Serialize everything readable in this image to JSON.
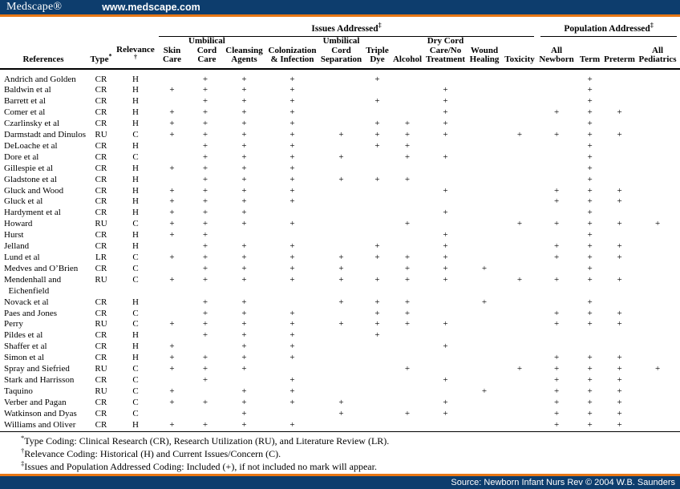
{
  "colors": {
    "navy": "#0d3d6d",
    "orange": "#e87715"
  },
  "header": {
    "logo": "Medscape®",
    "url": "www.medscape.com"
  },
  "footer": {
    "source": "Source: Newborn Infant Nurs Rev © 2004 W.B. Saunders"
  },
  "table": {
    "spanners": [
      {
        "label": "Issues Addressed",
        "sup": "‡"
      },
      {
        "label": "Population Addressed",
        "sup": "‡"
      }
    ],
    "columns": [
      {
        "key": "references",
        "label": "References",
        "sup": ""
      },
      {
        "key": "type",
        "label": "Type",
        "sup": "*"
      },
      {
        "key": "relevance",
        "label": "Relevance",
        "sup": "†"
      },
      {
        "key": "skin",
        "label": "Skin\nCare",
        "sup": ""
      },
      {
        "key": "cordcare",
        "label": "Umbilical\nCord\nCare",
        "sup": ""
      },
      {
        "key": "cleansing",
        "label": "Cleansing\nAgents",
        "sup": ""
      },
      {
        "key": "colonization",
        "label": "Colonization\n& Infection",
        "sup": ""
      },
      {
        "key": "separation",
        "label": "Umbilical\nCord\nSeparation",
        "sup": ""
      },
      {
        "key": "tripledye",
        "label": "Triple\nDye",
        "sup": ""
      },
      {
        "key": "alcohol",
        "label": "Alcohol",
        "sup": ""
      },
      {
        "key": "drycord",
        "label": "Dry Cord\nCare/No\nTreatment",
        "sup": ""
      },
      {
        "key": "wound",
        "label": "Wound\nHealing",
        "sup": ""
      },
      {
        "key": "toxicity",
        "label": "Toxicity",
        "sup": ""
      },
      {
        "key": "allnewborn",
        "label": "All\nNewborn",
        "sup": ""
      },
      {
        "key": "term",
        "label": "Term",
        "sup": ""
      },
      {
        "key": "preterm",
        "label": "Preterm",
        "sup": ""
      },
      {
        "key": "allpediatrics",
        "label": "All\nPediatrics",
        "sup": ""
      }
    ],
    "rows": [
      {
        "reference": "Andrich and Golden",
        "type": "CR",
        "relevance": "H",
        "marks": [
          "",
          "+",
          "+",
          "+",
          "",
          "+",
          "",
          "",
          "",
          "",
          "",
          "+",
          "",
          ""
        ]
      },
      {
        "reference": "Baldwin et al",
        "type": "CR",
        "relevance": "H",
        "marks": [
          "+",
          "+",
          "+",
          "+",
          "",
          "",
          "",
          "+",
          "",
          "",
          "",
          "+",
          "",
          ""
        ]
      },
      {
        "reference": "Barrett et al",
        "type": "CR",
        "relevance": "H",
        "marks": [
          "",
          "+",
          "+",
          "+",
          "",
          "+",
          "",
          "+",
          "",
          "",
          "",
          "+",
          "",
          ""
        ]
      },
      {
        "reference": "Comer et al",
        "type": "CR",
        "relevance": "H",
        "marks": [
          "+",
          "+",
          "+",
          "+",
          "",
          "",
          "",
          "+",
          "",
          "",
          "+",
          "+",
          "+",
          ""
        ]
      },
      {
        "reference": "Czarlinsky et al",
        "type": "CR",
        "relevance": "H",
        "marks": [
          "+",
          "+",
          "+",
          "+",
          "",
          "+",
          "+",
          "+",
          "",
          "",
          "",
          "+",
          "",
          ""
        ]
      },
      {
        "reference": "Darmstadt and Dinulos",
        "type": "RU",
        "relevance": "C",
        "marks": [
          "+",
          "+",
          "+",
          "+",
          "+",
          "+",
          "+",
          "+",
          "",
          "+",
          "+",
          "+",
          "+",
          ""
        ]
      },
      {
        "reference": "DeLoache et al",
        "type": "CR",
        "relevance": "H",
        "marks": [
          "",
          "+",
          "+",
          "+",
          "",
          "+",
          "+",
          "",
          "",
          "",
          "",
          "+",
          "",
          ""
        ]
      },
      {
        "reference": "Dore et al",
        "type": "CR",
        "relevance": "C",
        "marks": [
          "",
          "+",
          "+",
          "+",
          "+",
          "",
          "+",
          "+",
          "",
          "",
          "",
          "+",
          "",
          ""
        ]
      },
      {
        "reference": "Gillespie et al",
        "type": "CR",
        "relevance": "H",
        "marks": [
          "+",
          "+",
          "+",
          "+",
          "",
          "",
          "",
          "",
          "",
          "",
          "",
          "+",
          "",
          ""
        ]
      },
      {
        "reference": "Gladstone et al",
        "type": "CR",
        "relevance": "H",
        "marks": [
          "",
          "+",
          "+",
          "+",
          "+",
          "+",
          "+",
          "",
          "",
          "",
          "",
          "+",
          "",
          ""
        ]
      },
      {
        "reference": "Gluck and Wood",
        "type": "CR",
        "relevance": "H",
        "marks": [
          "+",
          "+",
          "+",
          "+",
          "",
          "",
          "",
          "+",
          "",
          "",
          "+",
          "+",
          "+",
          ""
        ]
      },
      {
        "reference": "Gluck et al",
        "type": "CR",
        "relevance": "H",
        "marks": [
          "+",
          "+",
          "+",
          "+",
          "",
          "",
          "",
          "",
          "",
          "",
          "+",
          "+",
          "+",
          ""
        ]
      },
      {
        "reference": "Hardyment et al",
        "type": "CR",
        "relevance": "H",
        "marks": [
          "+",
          "+",
          "+",
          "",
          "",
          "",
          "",
          "+",
          "",
          "",
          "",
          "+",
          "",
          ""
        ]
      },
      {
        "reference": "Howard",
        "type": "RU",
        "relevance": "C",
        "marks": [
          "+",
          "+",
          "+",
          "+",
          "",
          "",
          "+",
          "",
          "",
          "+",
          "+",
          "+",
          "+",
          "+"
        ]
      },
      {
        "reference": "Hurst",
        "type": "CR",
        "relevance": "H",
        "marks": [
          "+",
          "+",
          "",
          "",
          "",
          "",
          "",
          "+",
          "",
          "",
          "",
          "+",
          "",
          ""
        ]
      },
      {
        "reference": "Jelland",
        "type": "CR",
        "relevance": "H",
        "marks": [
          "",
          "+",
          "+",
          "+",
          "",
          "+",
          "",
          "+",
          "",
          "",
          "+",
          "+",
          "+",
          ""
        ]
      },
      {
        "reference": "Lund et al",
        "type": "LR",
        "relevance": "C",
        "marks": [
          "+",
          "+",
          "+",
          "+",
          "+",
          "+",
          "+",
          "+",
          "",
          "",
          "+",
          "+",
          "+",
          ""
        ]
      },
      {
        "reference": "Medves and O’Brien",
        "type": "CR",
        "relevance": "C",
        "marks": [
          "",
          "+",
          "+",
          "+",
          "+",
          "",
          "+",
          "+",
          "+",
          "",
          "",
          "+",
          "",
          ""
        ]
      },
      {
        "reference": "Mendenhall and\n  Eichenfield",
        "type": "RU",
        "relevance": "C",
        "marks": [
          "+",
          "+",
          "+",
          "+",
          "+",
          "+",
          "+",
          "+",
          "",
          "+",
          "+",
          "+",
          "+",
          ""
        ]
      },
      {
        "reference": "Novack et al",
        "type": "CR",
        "relevance": "H",
        "marks": [
          "",
          "+",
          "+",
          "",
          "+",
          "+",
          "+",
          "",
          "+",
          "",
          "",
          "+",
          "",
          ""
        ]
      },
      {
        "reference": "Paes and Jones",
        "type": "CR",
        "relevance": "C",
        "marks": [
          "",
          "+",
          "+",
          "+",
          "",
          "+",
          "+",
          "",
          "",
          "",
          "+",
          "+",
          "+",
          ""
        ]
      },
      {
        "reference": "Perry",
        "type": "RU",
        "relevance": "C",
        "marks": [
          "+",
          "+",
          "+",
          "+",
          "+",
          "+",
          "+",
          "+",
          "",
          "",
          "+",
          "+",
          "+",
          ""
        ]
      },
      {
        "reference": "Pildes et al",
        "type": "CR",
        "relevance": "H",
        "marks": [
          "",
          "+",
          "+",
          "+",
          "",
          "+",
          "",
          "",
          "",
          "",
          "",
          "",
          "",
          ""
        ]
      },
      {
        "reference": "Shaffer et al",
        "type": "CR",
        "relevance": "H",
        "marks": [
          "+",
          "",
          "+",
          "+",
          "",
          "",
          "",
          "+",
          "",
          "",
          "",
          "",
          "",
          ""
        ]
      },
      {
        "reference": "Simon et al",
        "type": "CR",
        "relevance": "H",
        "marks": [
          "+",
          "+",
          "+",
          "+",
          "",
          "",
          "",
          "",
          "",
          "",
          "+",
          "+",
          "+",
          ""
        ]
      },
      {
        "reference": "Spray and Siefried",
        "type": "RU",
        "relevance": "C",
        "marks": [
          "+",
          "+",
          "+",
          "",
          "",
          "",
          "+",
          "",
          "",
          "+",
          "+",
          "+",
          "+",
          "+"
        ]
      },
      {
        "reference": "Stark and Harrisson",
        "type": "CR",
        "relevance": "C",
        "marks": [
          "",
          "+",
          "",
          "+",
          "",
          "",
          "",
          "+",
          "",
          "",
          "+",
          "+",
          "+",
          ""
        ]
      },
      {
        "reference": "Taquino",
        "type": "RU",
        "relevance": "C",
        "marks": [
          "+",
          "",
          "+",
          "+",
          "",
          "",
          "",
          "",
          "+",
          "",
          "+",
          "+",
          "+",
          ""
        ]
      },
      {
        "reference": "Verber and Pagan",
        "type": "CR",
        "relevance": "C",
        "marks": [
          "+",
          "+",
          "+",
          "+",
          "+",
          "",
          "",
          "+",
          "",
          "",
          "+",
          "+",
          "+",
          ""
        ]
      },
      {
        "reference": "Watkinson and Dyas",
        "type": "CR",
        "relevance": "C",
        "marks": [
          "",
          "",
          "+",
          "",
          "+",
          "",
          "+",
          "+",
          "",
          "",
          "+",
          "+",
          "+",
          ""
        ]
      },
      {
        "reference": "Williams and Oliver",
        "type": "CR",
        "relevance": "H",
        "marks": [
          "+",
          "+",
          "+",
          "+",
          "",
          "",
          "",
          "",
          "",
          "",
          "+",
          "+",
          "+",
          ""
        ]
      }
    ],
    "footnotes": [
      {
        "sym": "*",
        "text": "Type Coding: Clinical Research (CR), Research Utilization (RU), and Literature Review (LR)."
      },
      {
        "sym": "†",
        "text": "Relevance Coding: Historical (H) and Current Issues/Concern (C)."
      },
      {
        "sym": "‡",
        "text": "Issues and Population Addressed Coding: Included (+), if not included no mark will appear."
      }
    ]
  }
}
